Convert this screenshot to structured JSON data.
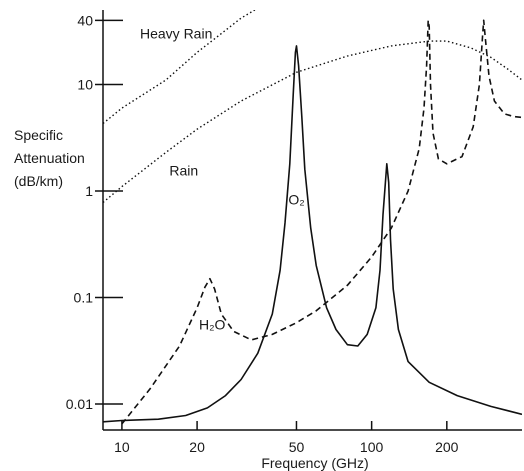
{
  "chart_data": {
    "type": "line",
    "title": "",
    "xlabel": "Frequency (GHz)",
    "ylabel_lines": [
      "Specific",
      "Attenuation",
      "(dB/km)"
    ],
    "x_scale": "log",
    "y_scale": "log",
    "xlim": [
      8.4,
      400
    ],
    "ylim": [
      0.0057,
      50
    ],
    "x_ticks": [
      {
        "value": 10,
        "label": "10"
      },
      {
        "value": 20,
        "label": "20"
      },
      {
        "value": 50,
        "label": "50"
      },
      {
        "value": 100,
        "label": "100"
      },
      {
        "value": 200,
        "label": "200"
      }
    ],
    "y_ticks": [
      {
        "value": 0.01,
        "label": "0.01"
      },
      {
        "value": 0.1,
        "label": "0.1"
      },
      {
        "value": 1,
        "label": "1"
      },
      {
        "value": 10,
        "label": "10"
      },
      {
        "value": 40,
        "label": "40"
      }
    ],
    "grid": false,
    "legend": "none",
    "series": [
      {
        "style": "solid",
        "color": "#111111",
        "points": [
          [
            8.4,
            0.0068
          ],
          [
            10,
            0.007
          ],
          [
            14,
            0.0072
          ],
          [
            18,
            0.0078
          ],
          [
            22,
            0.0092
          ],
          [
            26,
            0.012
          ],
          [
            30,
            0.017
          ],
          [
            35,
            0.03
          ],
          [
            40,
            0.07
          ],
          [
            43,
            0.18
          ],
          [
            45,
            0.5
          ],
          [
            47,
            1.8
          ],
          [
            48.5,
            8
          ],
          [
            49.5,
            20
          ],
          [
            50,
            23
          ],
          [
            51,
            15
          ],
          [
            52.5,
            5
          ],
          [
            54,
            1.6
          ],
          [
            57,
            0.45
          ],
          [
            60,
            0.2
          ],
          [
            66,
            0.08
          ],
          [
            72,
            0.05
          ],
          [
            80,
            0.036
          ],
          [
            88,
            0.035
          ],
          [
            96,
            0.045
          ],
          [
            104,
            0.08
          ],
          [
            108,
            0.18
          ],
          [
            111,
            0.6
          ],
          [
            113.5,
            1.2
          ],
          [
            115,
            1.8
          ],
          [
            117,
            1.2
          ],
          [
            119,
            0.35
          ],
          [
            122,
            0.12
          ],
          [
            128,
            0.05
          ],
          [
            140,
            0.025
          ],
          [
            170,
            0.016
          ],
          [
            220,
            0.012
          ],
          [
            300,
            0.0095
          ],
          [
            400,
            0.008
          ]
        ]
      },
      {
        "style": "dashed",
        "color": "#111111",
        "points": [
          [
            10,
            0.0065
          ],
          [
            13,
            0.014
          ],
          [
            17,
            0.035
          ],
          [
            20,
            0.08
          ],
          [
            21.5,
            0.125
          ],
          [
            22.5,
            0.15
          ],
          [
            23.5,
            0.12
          ],
          [
            25,
            0.07
          ],
          [
            28,
            0.048
          ],
          [
            33,
            0.04
          ],
          [
            40,
            0.045
          ],
          [
            50,
            0.058
          ],
          [
            60,
            0.075
          ],
          [
            80,
            0.13
          ],
          [
            100,
            0.24
          ],
          [
            120,
            0.45
          ],
          [
            140,
            1
          ],
          [
            155,
            2.5
          ],
          [
            162,
            6
          ],
          [
            166,
            15
          ],
          [
            168.5,
            40
          ],
          [
            170,
            35
          ],
          [
            172,
            10
          ],
          [
            176,
            3.5
          ],
          [
            185,
            2
          ],
          [
            200,
            1.8
          ],
          [
            230,
            2.1
          ],
          [
            255,
            4
          ],
          [
            270,
            10
          ],
          [
            278,
            28
          ],
          [
            281,
            40
          ],
          [
            285,
            28
          ],
          [
            295,
            12
          ],
          [
            310,
            7
          ],
          [
            340,
            5.3
          ],
          [
            370,
            5
          ],
          [
            400,
            4.9
          ]
        ]
      },
      {
        "name": "Heavy Rain",
        "style": "dotted",
        "color": "#111111",
        "points": [
          [
            8.4,
            4.3
          ],
          [
            10,
            6
          ],
          [
            15,
            11
          ],
          [
            20,
            20
          ],
          [
            25,
            30
          ],
          [
            30,
            42
          ],
          [
            35,
            52
          ],
          [
            45,
            70
          ]
        ]
      },
      {
        "name": "Rain",
        "style": "dotted",
        "color": "#111111",
        "points": [
          [
            8.4,
            0.78
          ],
          [
            10,
            1.1
          ],
          [
            15,
            2.3
          ],
          [
            20,
            3.8
          ],
          [
            30,
            7
          ],
          [
            50,
            13
          ],
          [
            80,
            18.5
          ],
          [
            120,
            23
          ],
          [
            170,
            25.5
          ],
          [
            200,
            25.5
          ],
          [
            250,
            22
          ],
          [
            300,
            18
          ],
          [
            350,
            14
          ],
          [
            400,
            11
          ]
        ]
      }
    ],
    "annotations": [
      {
        "text": "Heavy Rain",
        "x": 16.5,
        "y": 27,
        "anchor": "middle"
      },
      {
        "text": "Rain",
        "x": 15.5,
        "y": 1.4,
        "anchor": "start"
      },
      {
        "text": "O₂",
        "x": 50,
        "y": 0.75,
        "anchor": "middle"
      },
      {
        "text": "H₂O",
        "x": 23,
        "y": 0.05,
        "anchor": "middle"
      }
    ]
  }
}
